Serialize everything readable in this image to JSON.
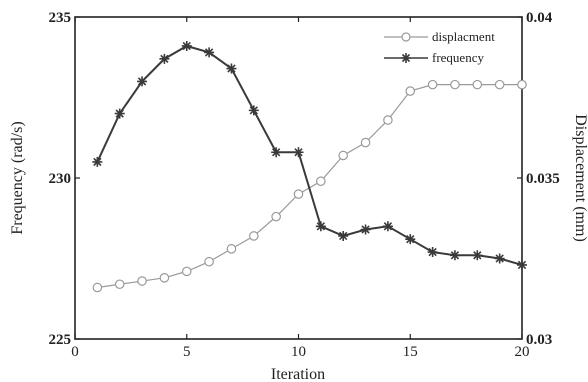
{
  "chart_data": {
    "type": "line",
    "title": "",
    "xlabel": "Iteration",
    "ylabel": "Frequency (rad/s)",
    "y2label": "Displacement (mm)",
    "xlim": [
      0,
      20
    ],
    "ylim": [
      225,
      235
    ],
    "y2lim": [
      0.03,
      0.04
    ],
    "xticks": [
      "0",
      "5",
      "10",
      "15",
      "20"
    ],
    "yticks": [
      "225",
      "230",
      "235"
    ],
    "y2ticks": [
      "0.03",
      "0.035",
      "0.04"
    ],
    "grid": false,
    "legend": "top-right",
    "x": [
      1,
      2,
      3,
      4,
      5,
      6,
      7,
      8,
      9,
      10,
      11,
      12,
      13,
      14,
      15,
      16,
      17,
      18,
      19,
      20
    ],
    "series": [
      {
        "name": "displacment",
        "axis": "right",
        "marker": "circle",
        "color": "#9a9a9a",
        "values": [
          0.0316,
          0.0317,
          0.0318,
          0.0319,
          0.0321,
          0.0324,
          0.0328,
          0.0332,
          0.0338,
          0.0345,
          0.0349,
          0.0357,
          0.0361,
          0.0368,
          0.0377,
          0.0379,
          0.0379,
          0.0379,
          0.0379,
          0.0379
        ]
      },
      {
        "name": "frequency",
        "axis": "left",
        "marker": "star",
        "color": "#3a3a3a",
        "values": [
          230.5,
          232.0,
          233.0,
          233.7,
          234.1,
          233.9,
          233.4,
          232.1,
          230.8,
          230.8,
          228.5,
          228.2,
          228.4,
          228.5,
          228.1,
          227.7,
          227.6,
          227.6,
          227.5,
          227.3
        ]
      }
    ]
  }
}
